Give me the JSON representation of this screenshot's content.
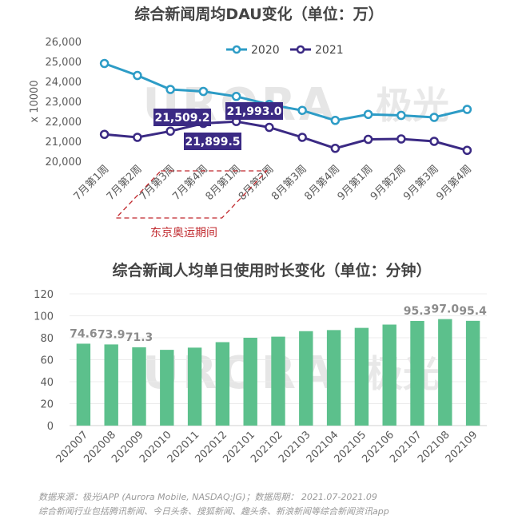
{
  "chart_data": [
    {
      "type": "line",
      "title": "综合新闻周均DAU变化（单位：万）",
      "ylabel": "x 10000",
      "ylim": [
        20000,
        26000
      ],
      "yticks": [
        20000,
        21000,
        22000,
        23000,
        24000,
        25000,
        26000
      ],
      "ytick_labels": [
        "20,000",
        "21,000",
        "22,000",
        "23,000",
        "24,000",
        "25,000",
        "26,000"
      ],
      "categories": [
        "7月第1周",
        "7月第2周",
        "7月第3周",
        "7月第4周",
        "8月第1周",
        "8月第2周",
        "8月第3周",
        "8月第4周",
        "9月第1周",
        "9月第2周",
        "9月第3周",
        "9月第4周"
      ],
      "legend_position": "top-right",
      "series": [
        {
          "name": "2020",
          "color": "#2d9cc6",
          "values": [
            24900,
            24300,
            23600,
            23500,
            23250,
            22850,
            22550,
            22050,
            22350,
            22300,
            22200,
            22600
          ]
        },
        {
          "name": "2021",
          "color": "#3b2a84",
          "values": [
            21350,
            21200,
            21509.2,
            21899.5,
            21993.0,
            21700,
            21200,
            20650,
            21100,
            21120,
            21000,
            20550
          ]
        }
      ],
      "callouts": [
        {
          "text": "21,509.2",
          "color": "#3b2a84"
        },
        {
          "text": "21,993.0",
          "color": "#3b2a84"
        },
        {
          "text": "21,899.5",
          "color": "#3b2a84"
        }
      ],
      "annotation": {
        "text": "东京奥运期间",
        "color": "#c0282d"
      },
      "watermark": {
        "text": "URORA",
        "text_cn": "极光"
      }
    },
    {
      "type": "bar",
      "title": "综合新闻人均单日使用时长变化（单位：分钟）",
      "ylim": [
        0,
        120
      ],
      "yticks": [
        0,
        20,
        40,
        60,
        80,
        100,
        120
      ],
      "ytick_labels": [
        "0",
        "20",
        "40",
        "60",
        "80",
        "100",
        "120"
      ],
      "categories": [
        "202007",
        "202008",
        "202009",
        "202010",
        "202011",
        "202012",
        "202101",
        "202102",
        "202103",
        "202104",
        "202105",
        "202106",
        "202107",
        "202108",
        "202109"
      ],
      "values": [
        74.6,
        73.9,
        71.3,
        69,
        71,
        76,
        80,
        81,
        86,
        87,
        89,
        92,
        95.3,
        97.0,
        95.4
      ],
      "data_labels": [
        "74.6",
        "73.9",
        "71.3",
        "",
        "",
        "",
        "",
        "",
        "",
        "",
        "",
        "",
        "95.3",
        "97.0",
        "95.4"
      ],
      "color": "#5cc08c",
      "watermark": {
        "text": "URORA",
        "text_cn": "极光"
      }
    }
  ],
  "source": {
    "line1": "数据来源：极光iAPP (Aurora Mobile, NASDAQ:JG)；数据周期：   2021.07-2021.09",
    "line2": "综合新闻行业包括腾讯新闻、今日头条、搜狐新闻、趣头条、新浪新闻等综合新闻资讯app"
  }
}
